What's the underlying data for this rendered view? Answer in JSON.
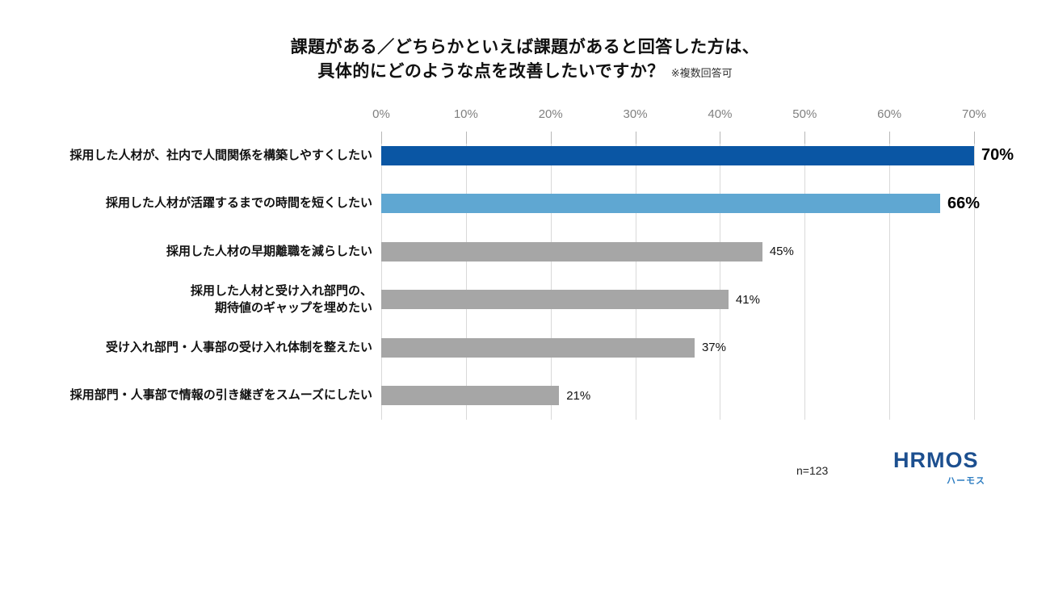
{
  "title": {
    "line1": "課題がある／どちらかといえば課題があると回答した方は、",
    "line2": "具体的にどのような点を改善したいですか？",
    "note": "※複数回答可"
  },
  "chart_data": {
    "type": "bar",
    "orientation": "horizontal",
    "title": "課題がある／どちらかといえば課題があると回答した方は、具体的にどのような点を改善したいですか？（複数回答可）",
    "categories": [
      "採用した人材が、社内で人間関係を構築しやすくしたい",
      "採用した人材が活躍するまでの時間を短くしたい",
      "採用した人材の早期離職を減らしたい",
      "採用した人材と受け入れ部門の、\n期待値のギャップを埋めたい",
      "受け入れ部門・人事部の受け入れ体制を整えたい",
      "採用部門・人事部で情報の引き継ぎをスムーズにしたい"
    ],
    "values": [
      70,
      66,
      45,
      41,
      37,
      21
    ],
    "value_labels": [
      "70%",
      "66%",
      "45%",
      "41%",
      "37%",
      "21%"
    ],
    "emphasized": [
      true,
      true,
      false,
      false,
      false,
      false
    ],
    "bar_colors": [
      "#0a56a4",
      "#5fa7d2",
      "#a6a6a6",
      "#a6a6a6",
      "#a6a6a6",
      "#a6a6a6"
    ],
    "x_ticks": [
      "0%",
      "10%",
      "20%",
      "30%",
      "40%",
      "50%",
      "60%",
      "70%"
    ],
    "xlim": [
      0,
      70
    ],
    "grid": true,
    "axis_position": "top",
    "legend": false
  },
  "footer": {
    "sample_size": "n=123"
  },
  "logo": {
    "text": "HRMOS",
    "subtitle": "ハーモス"
  },
  "colors": {
    "bar_primary": "#0a56a4",
    "bar_secondary": "#5fa7d2",
    "bar_neutral": "#a6a6a6",
    "gridline": "#d9d9d9",
    "axis_label": "#808080",
    "logo_dark_blue": "#1c4f8f",
    "logo_light_blue": "#2f7ec2"
  }
}
